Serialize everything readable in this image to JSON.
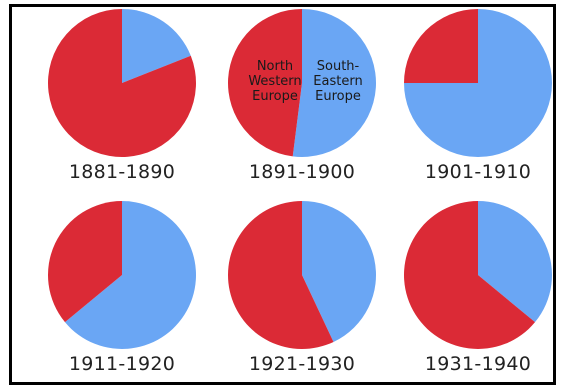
{
  "colors": {
    "north_western": "#db2a36",
    "south_eastern": "#6aa6f4"
  },
  "annotations": {
    "north_western": "North\nWestern\nEurope",
    "south_eastern": "South-\nEastern\nEurope"
  },
  "chart_data": {
    "type": "pie",
    "title": "",
    "series_labels": [
      "North Western Europe",
      "South-Eastern Europe"
    ],
    "charts": [
      {
        "label": "1881-1890",
        "north_western": 81,
        "south_eastern": 19
      },
      {
        "label": "1891-1900",
        "north_western": 48,
        "south_eastern": 52
      },
      {
        "label": "1901-1910",
        "north_western": 25,
        "south_eastern": 75
      },
      {
        "label": "1911-1920",
        "north_western": 36,
        "south_eastern": 64
      },
      {
        "label": "1921-1930",
        "north_western": 57,
        "south_eastern": 43
      },
      {
        "label": "1931-1940",
        "north_western": 64,
        "south_eastern": 36
      }
    ]
  }
}
